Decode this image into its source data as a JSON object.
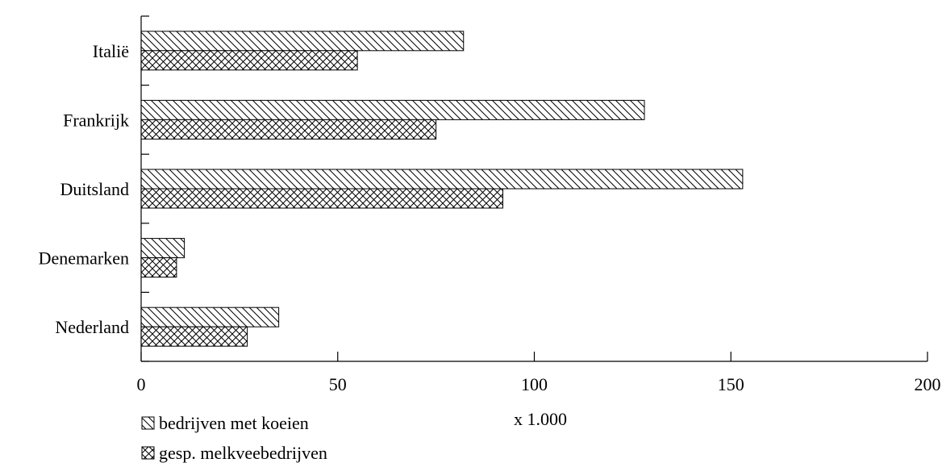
{
  "chart_data": {
    "type": "bar",
    "orientation": "horizontal",
    "title": "",
    "xlabel": "x 1.000",
    "ylabel": "",
    "categories": [
      "Italië",
      "Frankrijk",
      "Duitsland",
      "Denemarken",
      "Nederland"
    ],
    "series": [
      {
        "name": "bedrijven met koeien",
        "pattern": "diagonal-hatch",
        "values": [
          82,
          128,
          153,
          11,
          35
        ]
      },
      {
        "name": "gesp. melkveebedrijven",
        "pattern": "cross-hatch",
        "values": [
          55,
          75,
          92,
          9,
          27
        ]
      }
    ],
    "xlim": [
      0,
      200
    ],
    "xticks": [
      "0",
      "50",
      "100",
      "150",
      "200"
    ],
    "xtick_values": [
      0,
      50,
      100,
      150,
      200
    ],
    "grid": false,
    "legend_position": "bottom-left",
    "colors": {
      "fill": "#ffffff",
      "stroke": "#000000"
    }
  }
}
